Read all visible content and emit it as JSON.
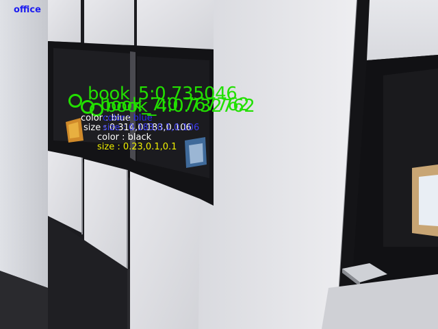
{
  "scene": {
    "label": "office",
    "label_color": "#1c1cf0"
  },
  "detections": [
    {
      "title": "book_5:0.735046",
      "color": "#22e000",
      "attributes": [
        {
          "text": "color : blue",
          "color": "#ffffff"
        },
        {
          "text": "size : 0.314,0.183,0.106",
          "color": "#ffffff"
        }
      ]
    },
    {
      "title": "book_7:0.767762",
      "color": "#22e000",
      "attributes": [
        {
          "text": "color : blue",
          "color": "#2a2ae8"
        },
        {
          "text": "size : 0.183,0.1,0.106",
          "color": "#3c3cf0"
        }
      ]
    },
    {
      "title": "book_4:0.732762",
      "color": "#22e000",
      "attributes": [
        {
          "text": "color : black",
          "color": "#ffffff"
        },
        {
          "text": "size : 0.23,0.1,0.1",
          "color": "#f0f000"
        }
      ]
    }
  ]
}
